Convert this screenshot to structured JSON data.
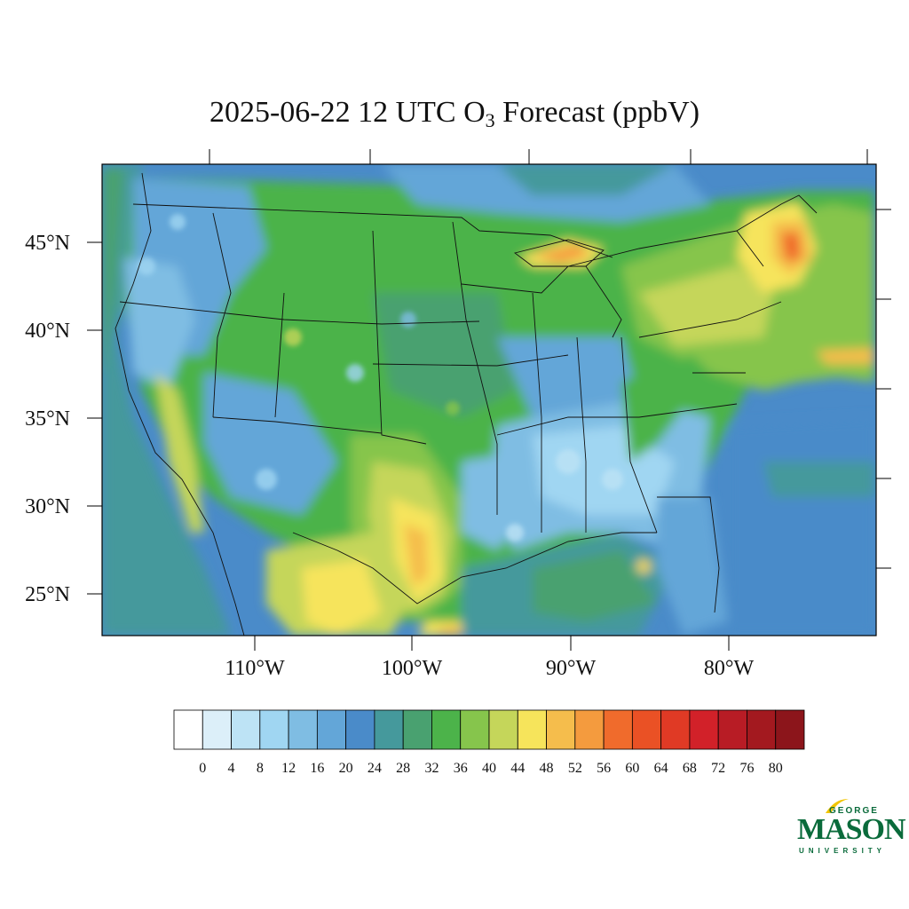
{
  "title": {
    "text": "2025-06-22 12 UTC O",
    "subscript": "3",
    "suffix": " Forecast (ppbV)"
  },
  "map": {
    "projection": "lambert-conformal",
    "region": "Contiguous United States",
    "lat_labels": [
      "45°N",
      "40°N",
      "35°N",
      "30°N",
      "25°N"
    ],
    "lon_labels": [
      "110°W",
      "100°W",
      "90°W",
      "80°W"
    ],
    "hotspots": [
      {
        "area": "Northern Maine / New Brunswick",
        "level": "high"
      },
      {
        "area": "Upper Peninsula of Michigan",
        "level": "high"
      },
      {
        "area": "South Texas / Gulf coast of Mexico",
        "level": "elevated"
      },
      {
        "area": "Atlantic east of Virginia",
        "level": "elevated"
      }
    ]
  },
  "colorbar": {
    "labels": [
      "0",
      "4",
      "8",
      "12",
      "16",
      "20",
      "24",
      "28",
      "32",
      "36",
      "40",
      "44",
      "48",
      "52",
      "56",
      "60",
      "64",
      "68",
      "72",
      "76",
      "80"
    ],
    "colors": [
      "#ffffff",
      "#dceff9",
      "#bde3f5",
      "#a0d6f2",
      "#7fbde3",
      "#63a6d8",
      "#4a8bc9",
      "#45999c",
      "#49a170",
      "#4cb34a",
      "#86c54c",
      "#c5d65a",
      "#f6e45b",
      "#f5bd4c",
      "#f49b3e",
      "#f06b2c",
      "#ea5125",
      "#e03a25",
      "#d22129",
      "#b81c25",
      "#a3191f",
      "#8c151b"
    ]
  },
  "logo": {
    "line1": "GEORGE",
    "line2": "MASON",
    "line3": "UNIVERSITY",
    "brand_color": "#0a6b3b",
    "accent_color": "#f2c500"
  }
}
